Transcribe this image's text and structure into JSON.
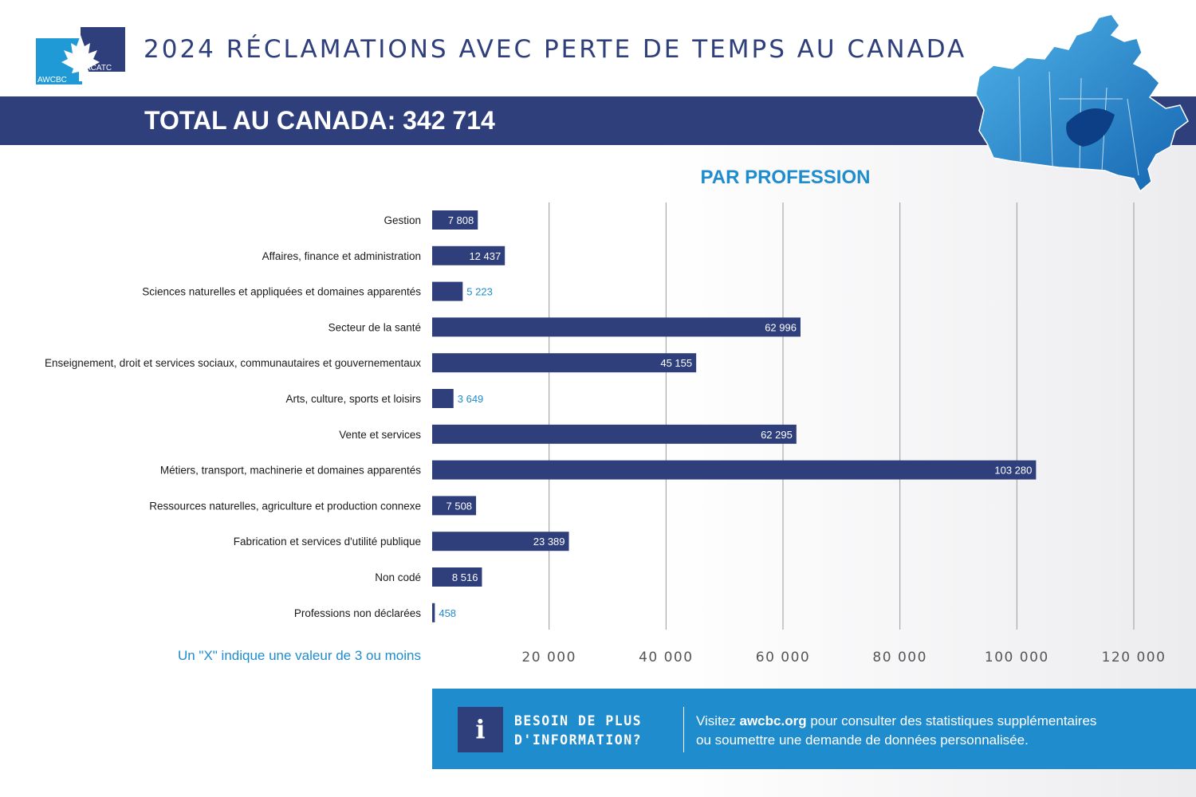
{
  "header": {
    "logo_text_left": "AWCBC",
    "logo_text_right": "ACATC",
    "title": "2024 RÉCLAMATIONS AVEC PERTE DE TEMPS AU CANADA",
    "total_label": "TOTAL AU CANADA: 342 714"
  },
  "colors": {
    "navy": "#2e3f7c",
    "accent_blue": "#1f8ccd",
    "bar": "#2e3f7c"
  },
  "chart_data": {
    "type": "bar",
    "orientation": "horizontal",
    "title": "PAR PROFESSION",
    "categories": [
      "Gestion",
      "Affaires, finance et administration",
      "Sciences naturelles et appliquées et domaines apparentés",
      "Secteur de la santé",
      "Enseignement, droit et services sociaux, communautaires et gouvernementaux",
      "Arts, culture, sports et loisirs",
      "Vente et services",
      "Métiers, transport, machinerie et domaines apparentés",
      "Ressources naturelles, agriculture et production connexe",
      "Fabrication et services d'utilité publique",
      "Non codé",
      "Professions non déclarées"
    ],
    "values": [
      7808,
      12437,
      5223,
      62996,
      45155,
      3649,
      62295,
      103280,
      7508,
      23389,
      8516,
      458
    ],
    "value_labels": [
      "7 808",
      "12 437",
      "5 223",
      "62 996",
      "45 155",
      "3 649",
      "62 295",
      "103 280",
      "7 508",
      "23 389",
      "8 516",
      "458"
    ],
    "xlim": [
      0,
      120000
    ],
    "xticks": [
      20000,
      40000,
      60000,
      80000,
      100000,
      120000
    ],
    "xtick_labels": [
      "20 000",
      "40 000",
      "60 000",
      "80 000",
      "100 000",
      "120 000"
    ],
    "grid": true,
    "legend": "none"
  },
  "footnote": "Un \"X\" indique une valeur de 3 ou moins",
  "info": {
    "icon": "info-icon",
    "heading_line1": "BESOIN DE PLUS",
    "heading_line2": "D'INFORMATION?",
    "text_prefix": "Visitez ",
    "link_text": "awcbc.org",
    "text_line1_rest": " pour consulter des statistiques supplémentaires",
    "text_line2": "ou soumettre une demande de données personnalisée."
  }
}
